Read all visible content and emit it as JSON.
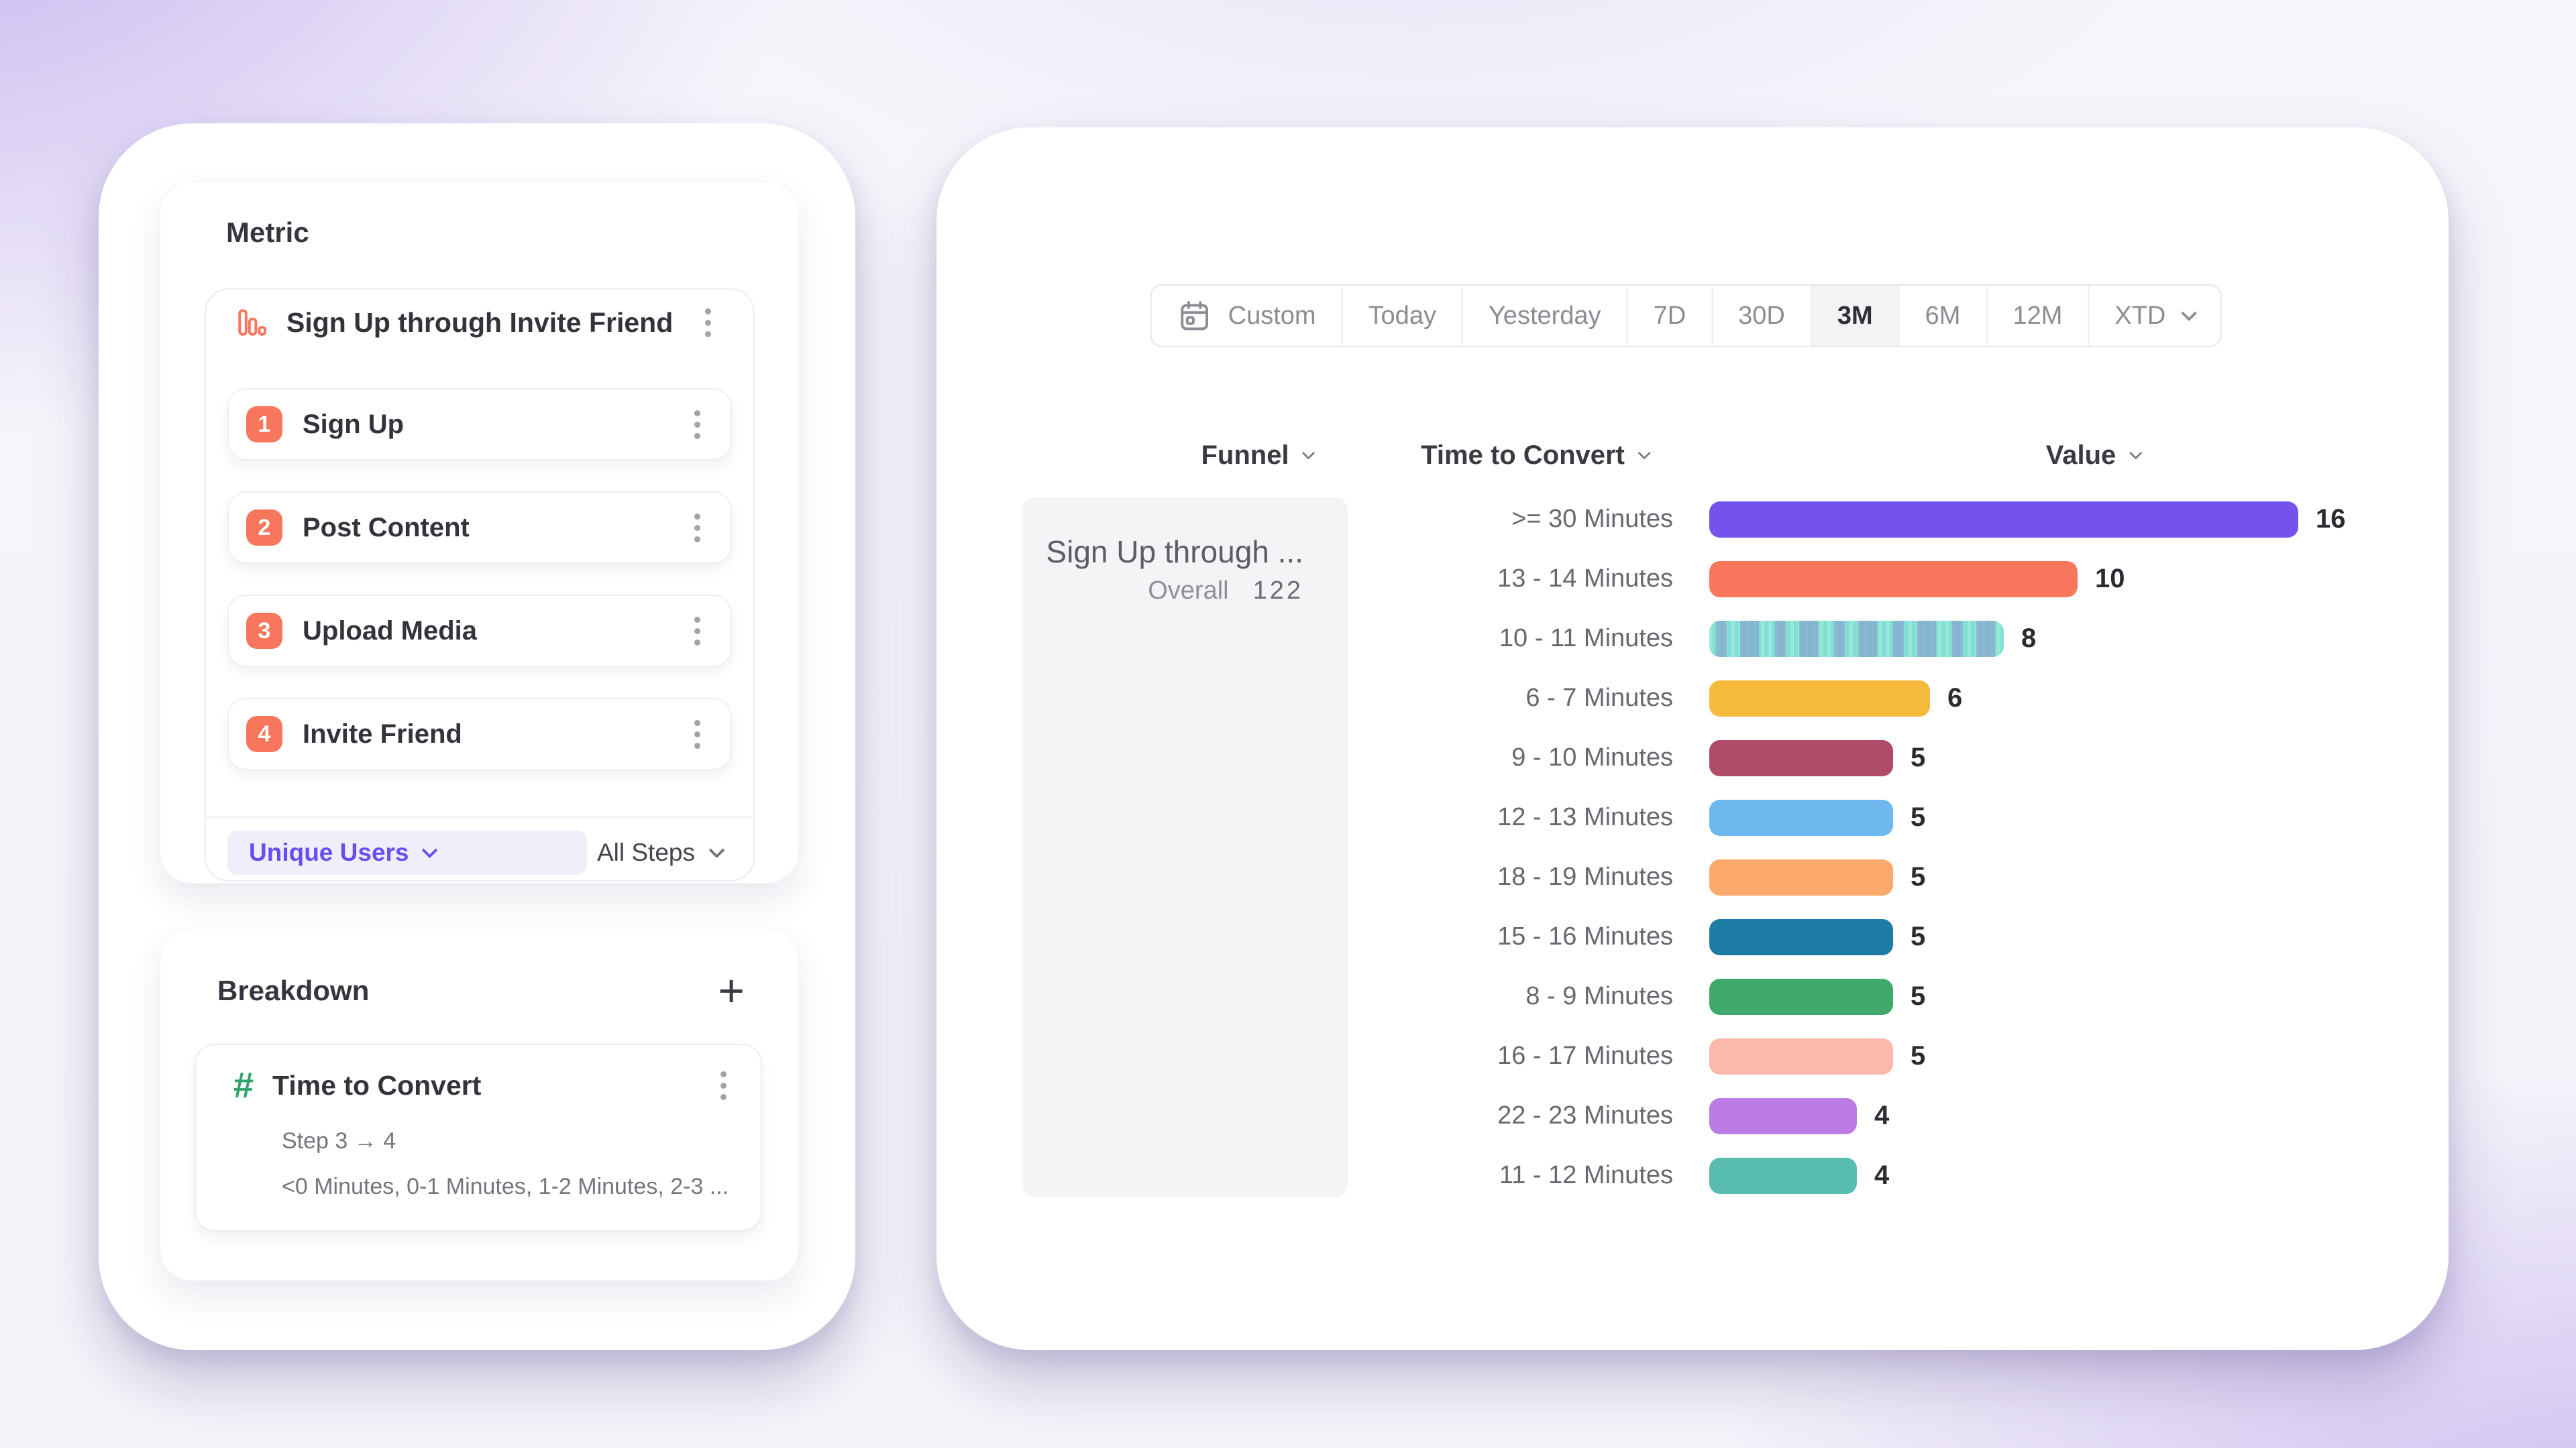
{
  "colors": {
    "accent_purple": "#6A4CF0",
    "accent_coral": "#F8765C",
    "hash_green": "#2FA36B",
    "selected_range_bg": "#F3F3F5",
    "funnel_cell_bg": "#F4F4F6"
  },
  "left_panel": {
    "metric": {
      "title": "Metric",
      "funnel": {
        "icon": "funnel-bar-chart-icon",
        "name": "Sign Up through Invite Friend",
        "steps": [
          {
            "number": "1",
            "label": "Sign Up"
          },
          {
            "number": "2",
            "label": "Post Content"
          },
          {
            "number": "3",
            "label": "Upload Media"
          },
          {
            "number": "4",
            "label": "Invite Friend"
          }
        ],
        "counting_method": "Unique Users",
        "steps_scope": "All Steps"
      }
    },
    "breakdown": {
      "title": "Breakdown",
      "add_label": "+",
      "property": {
        "icon": "hash-icon",
        "name": "Time to Convert",
        "step_range": "Step 3 → 4",
        "buckets_preview": "<0 Minutes, 0-1 Minutes, 1-2 Minutes, 2-3 ..."
      }
    }
  },
  "time_range": {
    "selected": "3M",
    "options": [
      {
        "label": "Custom",
        "icon": "calendar-icon"
      },
      {
        "label": "Today"
      },
      {
        "label": "Yesterday"
      },
      {
        "label": "7D"
      },
      {
        "label": "30D"
      },
      {
        "label": "3M",
        "selected": true
      },
      {
        "label": "6M"
      },
      {
        "label": "12M"
      },
      {
        "label": "XTD",
        "chevron": true
      }
    ]
  },
  "chart_data": {
    "type": "bar",
    "orientation": "horizontal",
    "columns": {
      "funnel": "Funnel",
      "category": "Time to Convert",
      "value": "Value"
    },
    "funnel_cell": {
      "name": "Sign Up through ...",
      "overall_label": "Overall",
      "overall_value": "122"
    },
    "xmax": 16,
    "legend": "none",
    "grid": "off",
    "rows": [
      {
        "label": ">= 30 Minutes",
        "value": 16,
        "color": "#7452EE"
      },
      {
        "label": "13 - 14 Minutes",
        "value": 10,
        "color": "#F8765C"
      },
      {
        "label": "10 - 11 Minutes",
        "value": 8,
        "color": "#7EDFD2",
        "patterned": true
      },
      {
        "label": "6 - 7 Minutes",
        "value": 6,
        "color": "#F5BA3C"
      },
      {
        "label": "9 - 10 Minutes",
        "value": 5,
        "color": "#AF4B67"
      },
      {
        "label": "12 - 13 Minutes",
        "value": 5,
        "color": "#6FB8EF"
      },
      {
        "label": "18 - 19 Minutes",
        "value": 5,
        "color": "#FBA96C"
      },
      {
        "label": "15 - 16 Minutes",
        "value": 5,
        "color": "#1E7CA4"
      },
      {
        "label": "8 - 9 Minutes",
        "value": 5,
        "color": "#3FA96B"
      },
      {
        "label": "16 - 17 Minutes",
        "value": 5,
        "color": "#FBB8AB"
      },
      {
        "label": "22 - 23 Minutes",
        "value": 4,
        "color": "#BB7CE3"
      },
      {
        "label": "11 - 12 Minutes",
        "value": 4,
        "color": "#58BDAE"
      }
    ]
  }
}
